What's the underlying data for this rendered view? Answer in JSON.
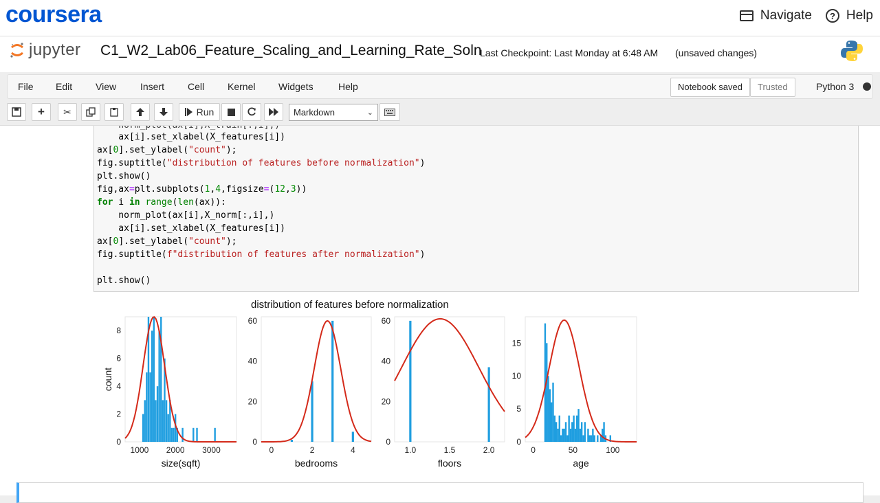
{
  "coursera": {
    "logo": "coursera",
    "navigate_label": "Navigate",
    "help_label": "Help"
  },
  "jupyter": {
    "logo_text": "jupyter",
    "notebook_name": "C1_W2_Lab06_Feature_Scaling_and_Learning_Rate_Soln",
    "checkpoint": "Last Checkpoint: Last Monday at 6:48 AM",
    "unsaved": "(unsaved changes)"
  },
  "menu": {
    "items": [
      "File",
      "Edit",
      "View",
      "Insert",
      "Cell",
      "Kernel",
      "Widgets",
      "Help"
    ],
    "notebook_saved": "Notebook saved",
    "trusted": "Trusted",
    "kernel": "Python 3"
  },
  "toolbar": {
    "run_label": "Run",
    "cell_type": "Markdown"
  },
  "code_lines": [
    "    norm_plot(ax[i],X_train[:,i],)",
    "    ax[i].set_xlabel(X_features[i])",
    "ax[0].set_ylabel(\"count\");",
    "fig.suptitle(\"distribution of features before normalization\")",
    "plt.show()",
    "fig,ax=plt.subplots(1,4,figsize=(12,3))",
    "for i in range(len(ax)):",
    "    norm_plot(ax[i],X_norm[:,i],)",
    "    ax[i].set_xlabel(X_features[i])",
    "ax[0].set_ylabel(\"count\");",
    "fig.suptitle(f\"distribution of features after normalization\")",
    "",
    "plt.show()"
  ],
  "chart_data": [
    {
      "type": "bar",
      "title": "distribution of features before normalization",
      "xlabel": "size(sqft)",
      "ylabel": "count",
      "xticks": [
        1000,
        2000,
        3000
      ],
      "yticks": [
        0,
        2,
        4,
        6,
        8
      ],
      "xlim": [
        600,
        3700
      ],
      "ylim": [
        0,
        9
      ],
      "x": [
        1000,
        1050,
        1100,
        1150,
        1200,
        1250,
        1300,
        1350,
        1400,
        1450,
        1500,
        1550,
        1600,
        1650,
        1700,
        1750,
        1800,
        1850,
        1900,
        1950,
        2000,
        2050,
        2100,
        2150,
        2200,
        2250,
        2300,
        2350,
        2400,
        2450,
        2500,
        2550,
        2600,
        2650,
        2700,
        2750,
        2800,
        2850,
        2900,
        2950,
        3000,
        3050,
        3100,
        3150,
        3200,
        3250,
        3300,
        3350,
        3400,
        3450
      ],
      "values": [
        0,
        0,
        2,
        3,
        5,
        9,
        5,
        8,
        9,
        3,
        4,
        8,
        9,
        3,
        6,
        3,
        2,
        3,
        1,
        1,
        2,
        1,
        0,
        0,
        1,
        0,
        0,
        0,
        0,
        0,
        1,
        0,
        1,
        0,
        0,
        0,
        0,
        0,
        0,
        0,
        0,
        0,
        1,
        0,
        0,
        0,
        0,
        0,
        0,
        0
      ],
      "curve": {
        "mean": 1400,
        "std": 300,
        "peak": 9
      }
    },
    {
      "type": "bar",
      "xlabel": "bedrooms",
      "ylabel": "",
      "xticks": [
        0,
        2,
        4
      ],
      "yticks": [
        0,
        20,
        40,
        60
      ],
      "xlim": [
        -0.5,
        4.9
      ],
      "ylim": [
        0,
        62
      ],
      "x": [
        1.0,
        2.0,
        3.0,
        4.0
      ],
      "values": [
        1,
        30,
        60,
        5
      ],
      "curve": {
        "mean": 2.75,
        "std": 0.65,
        "peak": 60
      }
    },
    {
      "type": "bar",
      "xlabel": "floors",
      "ylabel": "",
      "xticks": [
        1.0,
        1.5,
        2.0
      ],
      "yticks": [
        0,
        20,
        40,
        60
      ],
      "xlim": [
        0.8,
        2.2
      ],
      "ylim": [
        0,
        62
      ],
      "x": [
        1.0,
        2.0
      ],
      "values": [
        60,
        37
      ],
      "curve": {
        "mean": 1.38,
        "std": 0.49,
        "peak": 61
      }
    },
    {
      "type": "bar",
      "xlabel": "age",
      "ylabel": "",
      "xticks": [
        0,
        50,
        100
      ],
      "yticks": [
        0,
        5,
        10,
        15
      ],
      "xlim": [
        -10,
        130
      ],
      "ylim": [
        0,
        19
      ],
      "x": [
        15,
        17,
        19,
        21,
        23,
        25,
        27,
        29,
        31,
        33,
        35,
        37,
        39,
        41,
        43,
        45,
        47,
        49,
        51,
        53,
        55,
        57,
        59,
        61,
        63,
        65,
        67,
        69,
        71,
        73,
        75,
        77,
        79,
        81,
        83,
        85,
        87,
        89,
        91,
        93,
        95,
        97
      ],
      "values": [
        18,
        15,
        10,
        8,
        6,
        9,
        4,
        3,
        2,
        4,
        1,
        2,
        2,
        3,
        1,
        4,
        2,
        3,
        4,
        2,
        4,
        5,
        2,
        3,
        1,
        3,
        0,
        2,
        1,
        1,
        2,
        1,
        0,
        1,
        0,
        1,
        2,
        3,
        1,
        0,
        0,
        1
      ],
      "curve": {
        "mean": 39,
        "std": 19,
        "peak": 18.5
      }
    }
  ]
}
